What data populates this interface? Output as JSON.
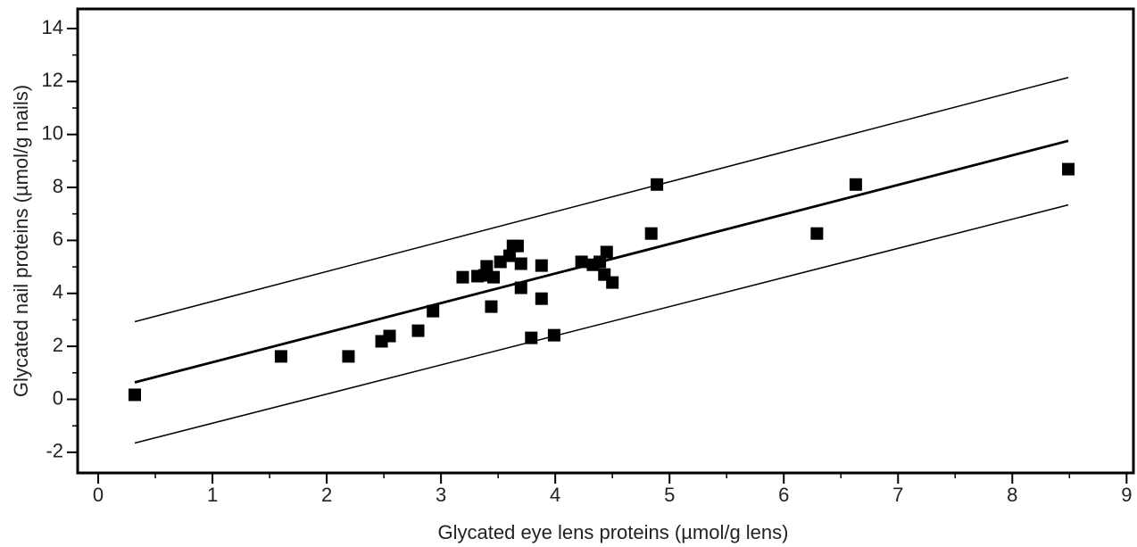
{
  "chart_data": {
    "type": "scatter",
    "xlabel": "Glycated eye lens proteins (µmol/g lens)",
    "ylabel": "Glycated nail proteins (µmol/g nails)",
    "color": "#000000",
    "x": [
      0.32,
      1.6,
      2.19,
      2.48,
      2.55,
      2.8,
      2.93,
      3.19,
      3.32,
      3.38,
      3.4,
      3.44,
      3.46,
      3.52,
      3.6,
      3.63,
      3.67,
      3.7,
      3.7,
      3.79,
      3.88,
      3.88,
      3.99,
      4.23,
      4.33,
      4.39,
      4.43,
      4.45,
      4.5,
      4.84,
      4.89,
      6.29,
      6.63,
      8.49
    ],
    "values": [
      0.17,
      1.62,
      1.62,
      2.19,
      2.39,
      2.59,
      3.33,
      4.61,
      4.65,
      4.68,
      5.02,
      3.5,
      4.61,
      5.19,
      5.42,
      5.79,
      5.79,
      5.12,
      4.21,
      2.32,
      3.8,
      5.05,
      2.42,
      5.19,
      5.08,
      5.19,
      4.71,
      5.56,
      4.41,
      6.26,
      8.11,
      6.26,
      8.11,
      8.69
    ],
    "fit_lines": [
      {
        "x": [
          0.32,
          8.49
        ],
        "values": [
          0.64,
          9.76
        ],
        "width": 2.8
      },
      {
        "x": [
          0.32,
          8.49
        ],
        "values": [
          2.93,
          12.15
        ],
        "width": 1.5
      },
      {
        "x": [
          0.32,
          8.49
        ],
        "values": [
          -1.65,
          7.34
        ],
        "width": 1.5
      }
    ],
    "xlim": [
      -0.18,
      9.06
    ],
    "ylim": [
      -2.78,
      14.74
    ],
    "xticks": [
      0,
      1,
      2,
      3,
      4,
      5,
      6,
      7,
      8,
      9
    ],
    "yticks": [
      -2,
      0,
      2,
      4,
      6,
      8,
      10,
      12,
      14
    ],
    "xminorticks": [
      0.5,
      1.5,
      2.5,
      3.5,
      4.5,
      5.5,
      6.5,
      7.5,
      8.5
    ],
    "yminorticks": [
      -1,
      1,
      3,
      5,
      7,
      9,
      11,
      13
    ]
  }
}
